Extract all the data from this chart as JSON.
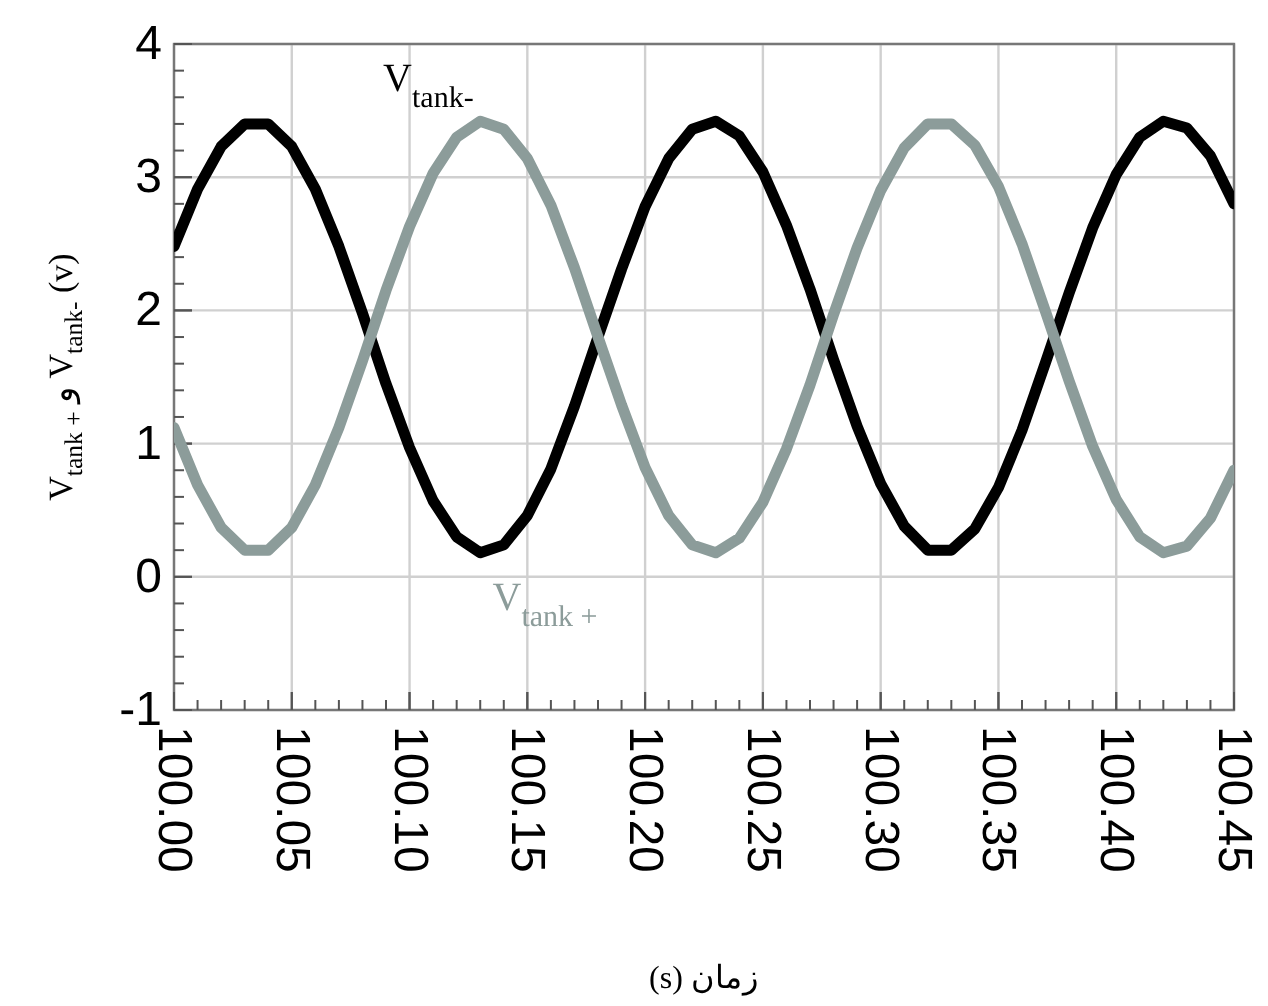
{
  "chart_data": {
    "type": "line",
    "xlabel": "زمان (s)",
    "ylabel": "V$_{tank +}$ و V$_{tank-}$ (v)",
    "x": [
      100.0,
      100.01,
      100.02,
      100.03,
      100.04,
      100.05,
      100.06,
      100.07,
      100.08,
      100.09,
      100.1,
      100.11,
      100.12,
      100.13,
      100.14,
      100.15,
      100.16,
      100.17,
      100.18,
      100.19,
      100.2,
      100.21,
      100.22,
      100.23,
      100.24,
      100.25,
      100.26,
      100.27,
      100.28,
      100.29,
      100.3,
      100.31,
      100.32,
      100.33,
      100.34,
      100.35,
      100.36,
      100.37,
      100.38,
      100.39,
      100.4,
      100.41,
      100.42,
      100.43,
      100.44,
      100.45
    ],
    "series": [
      {
        "name": "V$_{tank-}$",
        "color": "#000000",
        "values": [
          2.48,
          2.91,
          3.23,
          3.4,
          3.4,
          3.23,
          2.91,
          2.48,
          1.98,
          1.45,
          0.97,
          0.57,
          0.3,
          0.18,
          0.24,
          0.46,
          0.81,
          1.28,
          1.8,
          2.31,
          2.78,
          3.14,
          3.36,
          3.42,
          3.31,
          3.04,
          2.64,
          2.16,
          1.63,
          1.13,
          0.7,
          0.38,
          0.2,
          0.2,
          0.36,
          0.67,
          1.1,
          1.61,
          2.13,
          2.62,
          3.02,
          3.3,
          3.42,
          3.37,
          3.16,
          2.8
        ]
      },
      {
        "name": "V$_{tank +}$",
        "color": "#8c9c9a",
        "values": [
          1.12,
          0.69,
          0.37,
          0.2,
          0.2,
          0.37,
          0.69,
          1.12,
          1.62,
          2.15,
          2.63,
          3.03,
          3.3,
          3.42,
          3.36,
          3.14,
          2.79,
          2.32,
          1.8,
          1.29,
          0.82,
          0.46,
          0.24,
          0.18,
          0.29,
          0.56,
          0.96,
          1.44,
          1.97,
          2.47,
          2.9,
          3.22,
          3.4,
          3.4,
          3.24,
          2.93,
          2.5,
          1.99,
          1.47,
          0.98,
          0.58,
          0.3,
          0.18,
          0.23,
          0.44,
          0.8
        ]
      }
    ],
    "xlim": [
      100.0,
      100.45
    ],
    "ylim": [
      -1,
      4
    ],
    "xticks": [
      {
        "value": 100.0,
        "label": "100.00"
      },
      {
        "value": 100.05,
        "label": "100.05"
      },
      {
        "value": 100.1,
        "label": "100.10"
      },
      {
        "value": 100.15,
        "label": "100.15"
      },
      {
        "value": 100.2,
        "label": "100.20"
      },
      {
        "value": 100.25,
        "label": "100.25"
      },
      {
        "value": 100.3,
        "label": "100.30"
      },
      {
        "value": 100.35,
        "label": "100.35"
      },
      {
        "value": 100.4,
        "label": "100.40"
      },
      {
        "value": 100.45,
        "label": "100.45"
      }
    ],
    "yticks": [
      -1,
      0,
      1,
      2,
      3,
      4
    ],
    "grid": true,
    "line_style": "solid"
  }
}
